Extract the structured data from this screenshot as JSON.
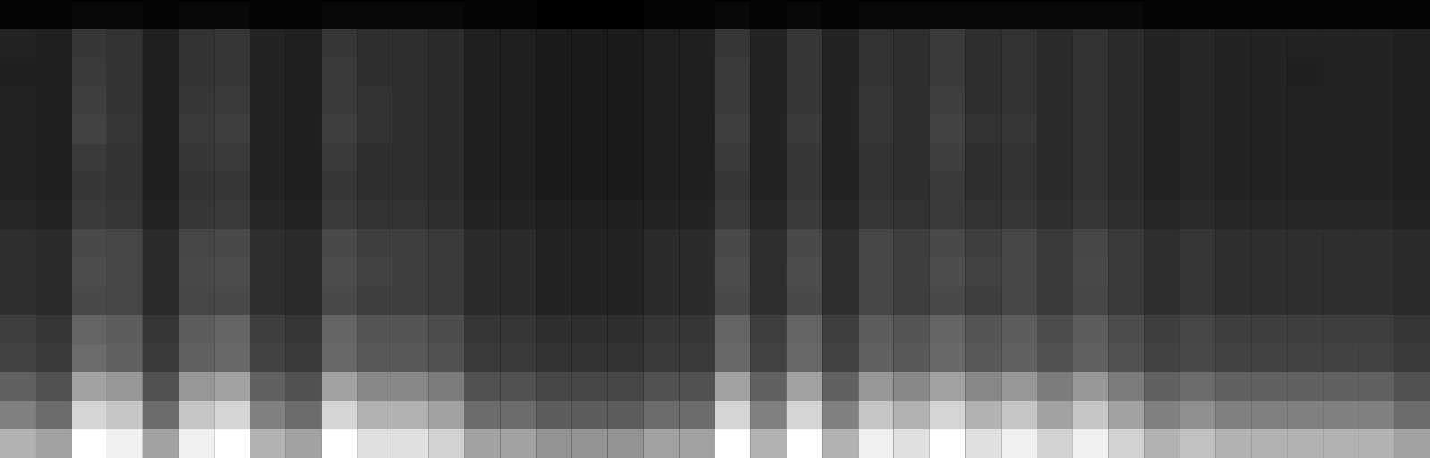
{
  "chart_data": {
    "type": "heatmap",
    "tick_labels": false,
    "cells": [
      [
        0.07,
        0.07,
        0.08,
        0.08,
        0.07,
        0.08,
        0.08,
        0.07,
        0.07,
        0.08,
        0.08,
        0.08,
        0.08,
        0.07,
        0.07,
        0.06,
        0.06,
        0.06,
        0.07,
        0.07,
        0.08,
        0.07,
        0.08,
        0.07,
        0.08,
        0.08,
        0.08,
        0.08,
        0.08,
        0.08,
        0.08,
        0.08,
        0.07,
        0.07,
        0.07,
        0.07,
        0.07,
        0.07,
        0.07,
        0.07
      ],
      [
        0.15,
        0.14,
        0.2,
        0.19,
        0.14,
        0.19,
        0.2,
        0.15,
        0.14,
        0.2,
        0.18,
        0.18,
        0.17,
        0.14,
        0.14,
        0.13,
        0.13,
        0.13,
        0.14,
        0.14,
        0.2,
        0.15,
        0.2,
        0.15,
        0.19,
        0.18,
        0.21,
        0.18,
        0.19,
        0.17,
        0.19,
        0.17,
        0.15,
        0.16,
        0.15,
        0.15,
        0.15,
        0.15,
        0.15,
        0.14
      ],
      [
        0.14,
        0.14,
        0.21,
        0.19,
        0.14,
        0.19,
        0.2,
        0.15,
        0.14,
        0.21,
        0.18,
        0.18,
        0.17,
        0.14,
        0.14,
        0.13,
        0.13,
        0.13,
        0.14,
        0.14,
        0.21,
        0.15,
        0.2,
        0.15,
        0.19,
        0.18,
        0.21,
        0.18,
        0.19,
        0.17,
        0.19,
        0.17,
        0.15,
        0.16,
        0.15,
        0.15,
        0.14,
        0.15,
        0.15,
        0.14
      ],
      [
        0.15,
        0.14,
        0.22,
        0.19,
        0.14,
        0.2,
        0.21,
        0.15,
        0.14,
        0.21,
        0.19,
        0.18,
        0.17,
        0.14,
        0.14,
        0.13,
        0.13,
        0.13,
        0.14,
        0.14,
        0.21,
        0.15,
        0.2,
        0.15,
        0.2,
        0.18,
        0.22,
        0.18,
        0.19,
        0.17,
        0.19,
        0.17,
        0.15,
        0.16,
        0.15,
        0.15,
        0.15,
        0.15,
        0.15,
        0.14
      ],
      [
        0.15,
        0.14,
        0.23,
        0.2,
        0.14,
        0.21,
        0.22,
        0.15,
        0.14,
        0.22,
        0.19,
        0.18,
        0.17,
        0.14,
        0.14,
        0.13,
        0.13,
        0.13,
        0.14,
        0.14,
        0.22,
        0.15,
        0.21,
        0.15,
        0.2,
        0.18,
        0.23,
        0.19,
        0.2,
        0.17,
        0.19,
        0.17,
        0.15,
        0.16,
        0.15,
        0.15,
        0.15,
        0.15,
        0.15,
        0.14
      ],
      [
        0.15,
        0.14,
        0.21,
        0.19,
        0.14,
        0.2,
        0.21,
        0.15,
        0.14,
        0.21,
        0.18,
        0.18,
        0.17,
        0.14,
        0.14,
        0.13,
        0.13,
        0.13,
        0.14,
        0.14,
        0.21,
        0.15,
        0.2,
        0.15,
        0.19,
        0.18,
        0.22,
        0.18,
        0.19,
        0.17,
        0.19,
        0.17,
        0.15,
        0.16,
        0.15,
        0.15,
        0.15,
        0.15,
        0.15,
        0.14
      ],
      [
        0.15,
        0.14,
        0.2,
        0.19,
        0.14,
        0.19,
        0.2,
        0.15,
        0.14,
        0.2,
        0.18,
        0.18,
        0.17,
        0.14,
        0.14,
        0.13,
        0.13,
        0.13,
        0.14,
        0.14,
        0.2,
        0.15,
        0.2,
        0.15,
        0.19,
        0.18,
        0.21,
        0.18,
        0.19,
        0.17,
        0.19,
        0.17,
        0.15,
        0.16,
        0.15,
        0.15,
        0.15,
        0.15,
        0.15,
        0.14
      ],
      [
        0.16,
        0.15,
        0.21,
        0.2,
        0.15,
        0.2,
        0.21,
        0.16,
        0.15,
        0.21,
        0.19,
        0.19,
        0.18,
        0.15,
        0.15,
        0.14,
        0.14,
        0.14,
        0.15,
        0.15,
        0.21,
        0.16,
        0.21,
        0.16,
        0.2,
        0.19,
        0.21,
        0.19,
        0.2,
        0.18,
        0.2,
        0.18,
        0.16,
        0.17,
        0.16,
        0.16,
        0.16,
        0.16,
        0.16,
        0.15
      ],
      [
        0.18,
        0.17,
        0.25,
        0.24,
        0.17,
        0.24,
        0.25,
        0.18,
        0.17,
        0.25,
        0.22,
        0.22,
        0.21,
        0.17,
        0.17,
        0.15,
        0.15,
        0.15,
        0.17,
        0.17,
        0.25,
        0.18,
        0.25,
        0.18,
        0.24,
        0.22,
        0.25,
        0.22,
        0.24,
        0.21,
        0.24,
        0.21,
        0.18,
        0.2,
        0.18,
        0.18,
        0.18,
        0.18,
        0.18,
        0.17
      ],
      [
        0.18,
        0.17,
        0.26,
        0.24,
        0.17,
        0.25,
        0.26,
        0.18,
        0.17,
        0.26,
        0.23,
        0.22,
        0.21,
        0.17,
        0.17,
        0.15,
        0.15,
        0.15,
        0.17,
        0.17,
        0.26,
        0.18,
        0.26,
        0.18,
        0.24,
        0.22,
        0.26,
        0.23,
        0.24,
        0.21,
        0.25,
        0.21,
        0.18,
        0.2,
        0.18,
        0.18,
        0.18,
        0.18,
        0.18,
        0.17
      ],
      [
        0.18,
        0.17,
        0.25,
        0.24,
        0.17,
        0.24,
        0.25,
        0.18,
        0.17,
        0.25,
        0.22,
        0.22,
        0.21,
        0.17,
        0.17,
        0.15,
        0.15,
        0.15,
        0.17,
        0.17,
        0.25,
        0.18,
        0.25,
        0.18,
        0.24,
        0.22,
        0.25,
        0.22,
        0.24,
        0.21,
        0.24,
        0.21,
        0.18,
        0.2,
        0.18,
        0.18,
        0.18,
        0.18,
        0.18,
        0.17
      ],
      [
        0.22,
        0.2,
        0.32,
        0.3,
        0.2,
        0.3,
        0.32,
        0.22,
        0.2,
        0.32,
        0.28,
        0.28,
        0.26,
        0.2,
        0.2,
        0.18,
        0.18,
        0.18,
        0.2,
        0.2,
        0.32,
        0.22,
        0.32,
        0.22,
        0.3,
        0.28,
        0.32,
        0.28,
        0.3,
        0.26,
        0.3,
        0.26,
        0.22,
        0.24,
        0.22,
        0.22,
        0.22,
        0.22,
        0.22,
        0.2
      ],
      [
        0.23,
        0.21,
        0.34,
        0.31,
        0.21,
        0.31,
        0.33,
        0.23,
        0.21,
        0.33,
        0.29,
        0.29,
        0.27,
        0.21,
        0.21,
        0.19,
        0.19,
        0.19,
        0.21,
        0.21,
        0.33,
        0.23,
        0.33,
        0.23,
        0.31,
        0.29,
        0.33,
        0.29,
        0.31,
        0.27,
        0.31,
        0.27,
        0.23,
        0.25,
        0.23,
        0.23,
        0.23,
        0.23,
        0.23,
        0.21
      ],
      [
        0.31,
        0.27,
        0.48,
        0.45,
        0.27,
        0.45,
        0.48,
        0.31,
        0.27,
        0.48,
        0.41,
        0.41,
        0.38,
        0.27,
        0.27,
        0.24,
        0.24,
        0.24,
        0.27,
        0.27,
        0.48,
        0.31,
        0.48,
        0.31,
        0.45,
        0.41,
        0.48,
        0.41,
        0.45,
        0.38,
        0.45,
        0.38,
        0.31,
        0.34,
        0.31,
        0.31,
        0.31,
        0.31,
        0.31,
        0.27
      ],
      [
        0.39,
        0.34,
        0.61,
        0.57,
        0.34,
        0.57,
        0.61,
        0.39,
        0.34,
        0.61,
        0.52,
        0.52,
        0.48,
        0.34,
        0.34,
        0.3,
        0.3,
        0.3,
        0.34,
        0.34,
        0.61,
        0.39,
        0.61,
        0.39,
        0.57,
        0.52,
        0.61,
        0.52,
        0.57,
        0.48,
        0.57,
        0.48,
        0.39,
        0.43,
        0.39,
        0.39,
        0.39,
        0.39,
        0.39,
        0.34
      ],
      [
        0.52,
        0.48,
        0.72,
        0.68,
        0.48,
        0.68,
        0.72,
        0.52,
        0.48,
        0.72,
        0.64,
        0.64,
        0.6,
        0.48,
        0.48,
        0.44,
        0.44,
        0.44,
        0.48,
        0.48,
        0.72,
        0.52,
        0.72,
        0.52,
        0.68,
        0.64,
        0.72,
        0.64,
        0.68,
        0.6,
        0.68,
        0.6,
        0.52,
        0.56,
        0.52,
        0.52,
        0.52,
        0.52,
        0.52,
        0.48
      ]
    ]
  }
}
